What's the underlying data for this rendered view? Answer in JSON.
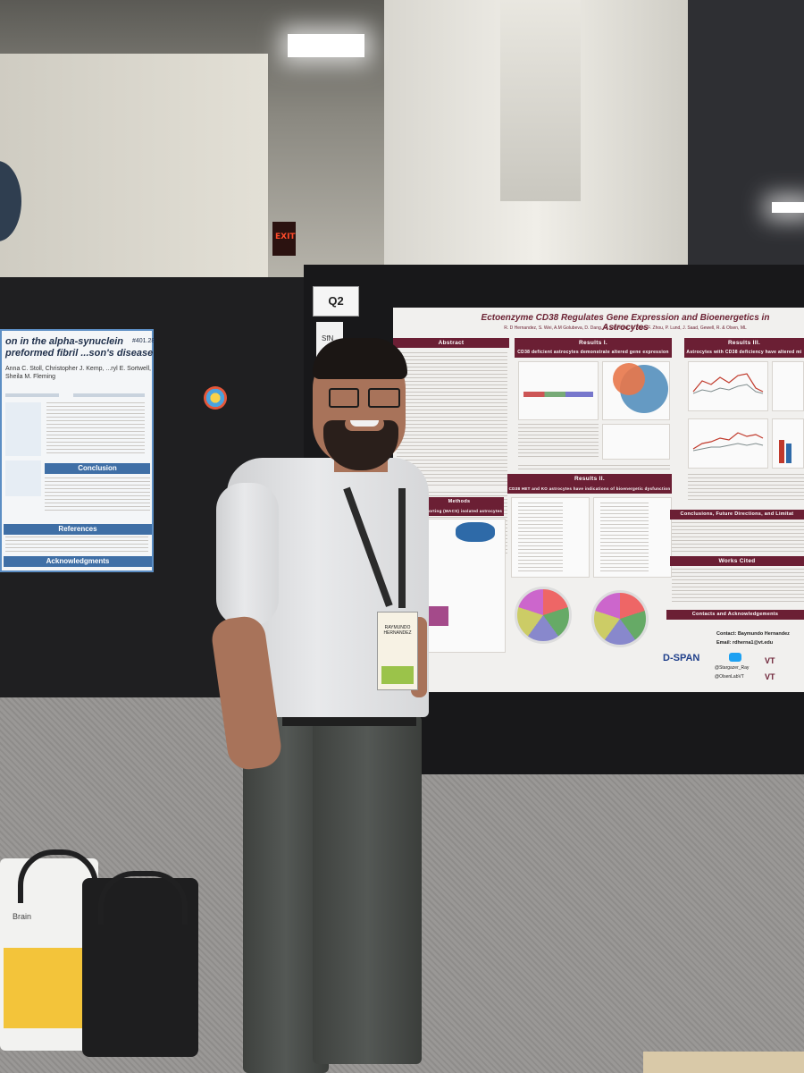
{
  "scene": {
    "exit_sign": "EXIT",
    "board_label": "Q2",
    "sfn_tag": "SfN"
  },
  "left_poster": {
    "title": "on in the alpha-synuclein preformed fibril ...son's disease",
    "number": "#401.28",
    "authors": "Anna C. Stoll, Christopher J. Kemp, ...ryl E. Sortwell, Sheila M. Fleming",
    "sections": [
      "Conclusion",
      "References",
      "Acknowledgments"
    ]
  },
  "poster": {
    "title": "Ectoenzyme CD38 Regulates Gene Expression and Bioenergetics in Astrocytes",
    "authors": "R. D Hernandez, S. Wei, A.M Golubeva, D. Dang, M. Simmons, K. Noel, F. Zhou, P. Lund, J. Saad, Gewell, R. & Olsen, ML",
    "sections": {
      "abstract": "Abstract",
      "results1": "Results I.",
      "results1_sub": "CD38 deficient astrocytes demonstrate altered gene expression",
      "results3": "Results III.",
      "results3_sub": "Astrocytes with CD38 deficiency have altered mi",
      "methods": "Methods",
      "methods_sub": "Cell Sorting (MACS) isolated astrocytes",
      "results2": "Results II.",
      "results2_sub": "CD38 HET and KO astrocytes have indications of bioenergetic dysfunction",
      "conclusions": "Conclusions, Future Directions, and Limitat",
      "works_cited": "Works Cited",
      "contacts": "Contacts and Acknowledgements"
    },
    "contact": {
      "name": "Contact: Baymundo Hernandez",
      "email": "Email: rdherna1@vt.edu",
      "twitter1": "@Stargazer_Ray",
      "twitter2": "@OlsenLabVT"
    },
    "logos": [
      "D-SPAN",
      "VT"
    ]
  },
  "badge": {
    "name": "RAYMUNDO HERNANDEZ"
  },
  "bag": {
    "text": "Brain"
  },
  "colors": {
    "poster_accent": "#6b1f34",
    "left_poster_accent": "#3f6fa6",
    "badge_green": "#9bc34a"
  }
}
